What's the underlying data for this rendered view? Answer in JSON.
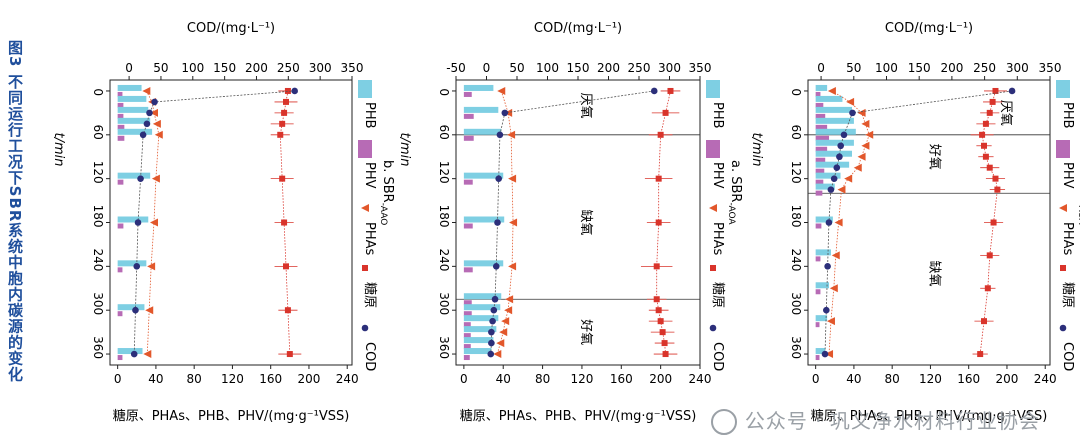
{
  "figure": {
    "caption": "图3  不同运行工况下SBR系统中胞内碳源的变化",
    "watermark": "公众号 · 巩义净水材料行业协会",
    "x_axis_label": "t/min",
    "top_axis_label": "COD/(mg·L⁻¹)",
    "bottom_axis_label": "糖原、PHAs、PHB、PHV/(mg·g⁻¹VSS)",
    "legend": [
      {
        "key": "phb",
        "label": "PHB",
        "color": "#7ecfe3"
      },
      {
        "key": "phv",
        "label": "PHV",
        "color": "#b76bb5"
      },
      {
        "key": "phas",
        "label": "PHAs",
        "color": "#e2572b"
      },
      {
        "key": "glycogen",
        "label": "糖原",
        "color": "#d9342b"
      },
      {
        "key": "cod",
        "label": "COD",
        "color": "#2c2f7a"
      }
    ]
  },
  "chart_data": [
    {
      "type": "bar",
      "subtitle": "a. SBR",
      "subtitle_sub": "AOA",
      "x_axis": {
        "label": "t/min",
        "range": [
          -15,
          375
        ],
        "ticks": [
          0,
          60,
          120,
          180,
          240,
          300,
          360
        ]
      },
      "top_axis": {
        "label": "COD/(mg·L⁻¹)",
        "range": [
          -20,
          350
        ],
        "ticks": [
          0,
          50,
          100,
          150,
          200,
          250,
          300,
          350
        ]
      },
      "bottom_axis": {
        "label": "糖原、PHAs、PHB、PHV/(mg·g⁻¹VSS)",
        "range": [
          -8,
          245
        ],
        "ticks": [
          0,
          40,
          80,
          120,
          160,
          200,
          240
        ]
      },
      "phase_lines": [
        60,
        140
      ],
      "phase_labels": [
        {
          "text": "厌氧",
          "t": 30,
          "v": 195
        },
        {
          "text": "好氧",
          "t": 90,
          "v": 120
        },
        {
          "text": "缺氧",
          "t": 250,
          "v": 120
        }
      ],
      "bar_times": [
        0,
        15,
        30,
        45,
        60,
        75,
        90,
        105,
        120,
        135,
        180,
        225,
        270,
        315,
        360
      ],
      "phb": [
        12,
        28,
        38,
        40,
        42,
        40,
        38,
        35,
        26,
        20,
        18,
        16,
        14,
        12,
        10
      ],
      "phv": [
        5,
        8,
        10,
        12,
        14,
        12,
        10,
        9,
        8,
        7,
        6,
        5,
        5,
        4,
        4
      ],
      "phas_t": [
        0,
        15,
        30,
        45,
        60,
        75,
        90,
        105,
        120,
        135,
        180,
        225,
        270,
        315,
        360
      ],
      "phas": [
        17,
        36,
        48,
        52,
        56,
        52,
        48,
        44,
        34,
        27,
        24,
        21,
        19,
        16,
        14
      ],
      "glycogen_t": [
        0,
        15,
        30,
        45,
        60,
        75,
        90,
        105,
        120,
        135,
        180,
        225,
        270,
        315,
        360
      ],
      "glycogen": [
        188,
        185,
        182,
        178,
        174,
        176,
        178,
        182,
        188,
        190,
        186,
        182,
        180,
        176,
        172
      ],
      "glycogen_err": [
        12,
        10,
        10,
        10,
        12,
        8,
        8,
        10,
        10,
        8,
        10,
        10,
        8,
        10,
        8
      ],
      "cod_t": [
        0,
        30,
        60,
        75,
        90,
        105,
        120,
        135,
        180,
        240,
        300,
        360
      ],
      "cod": [
        292,
        48,
        35,
        30,
        28,
        24,
        20,
        15,
        12,
        10,
        8,
        6
      ]
    },
    {
      "type": "bar",
      "subtitle": "a. SBR",
      "subtitle_sub": "AOA",
      "x_axis": {
        "label": "t/min",
        "range": [
          -15,
          375
        ],
        "ticks": [
          0,
          60,
          120,
          180,
          240,
          300,
          360
        ]
      },
      "top_axis": {
        "label": "COD/(mg·L⁻¹)",
        "range": [
          -50,
          350
        ],
        "ticks": [
          -50,
          0,
          50,
          100,
          150,
          200,
          250,
          300,
          350
        ]
      },
      "bottom_axis": {
        "label": "糖原、PHAs、PHB、PHV/(mg·g⁻¹VSS)",
        "range": [
          -8,
          240
        ],
        "ticks": [
          0,
          40,
          80,
          120,
          160,
          200,
          240
        ]
      },
      "phase_lines": [
        60,
        285
      ],
      "phase_labels": [
        {
          "text": "厌氧",
          "t": 20,
          "v": 120
        },
        {
          "text": "缺氧",
          "t": 180,
          "v": 120
        },
        {
          "text": "好氧",
          "t": 330,
          "v": 120
        }
      ],
      "bar_times": [
        0,
        30,
        60,
        120,
        180,
        240,
        285,
        300,
        315,
        330,
        345,
        360
      ],
      "phb": [
        30,
        35,
        38,
        40,
        41,
        40,
        38,
        37,
        35,
        33,
        30,
        28
      ],
      "phv": [
        8,
        10,
        10,
        9,
        9,
        9,
        8,
        8,
        7,
        7,
        7,
        6
      ],
      "phas_t": [
        0,
        30,
        60,
        120,
        180,
        240,
        285,
        300,
        315,
        330,
        345,
        360
      ],
      "phas": [
        38,
        45,
        48,
        49,
        50,
        49,
        46,
        45,
        42,
        40,
        37,
        34
      ],
      "glycogen_t": [
        0,
        30,
        60,
        120,
        180,
        240,
        285,
        300,
        315,
        330,
        345,
        360
      ],
      "glycogen": [
        210,
        205,
        200,
        198,
        198,
        196,
        196,
        198,
        200,
        202,
        204,
        205
      ],
      "glycogen_err": [
        10,
        14,
        12,
        14,
        12,
        16,
        10,
        10,
        12,
        12,
        10,
        12
      ],
      "cod_t": [
        0,
        30,
        60,
        120,
        180,
        240,
        285,
        300,
        315,
        330,
        345,
        360
      ],
      "cod": [
        275,
        30,
        22,
        20,
        18,
        16,
        14,
        12,
        10,
        8,
        8,
        7
      ]
    },
    {
      "type": "bar",
      "subtitle": "b. SBR",
      "subtitle_sub": "AAO",
      "x_axis": {
        "label": "t/min",
        "range": [
          -15,
          375
        ],
        "ticks": [
          0,
          60,
          120,
          180,
          240,
          300,
          360
        ]
      },
      "top_axis": {
        "label": "COD/(mg·L⁻¹)",
        "range": [
          -30,
          350
        ],
        "ticks": [
          0,
          50,
          100,
          150,
          200,
          250,
          300,
          350
        ]
      },
      "bottom_axis": {
        "label": "糖原、PHAs、PHB、PHV/(mg·g⁻¹VSS)",
        "range": [
          -8,
          245
        ],
        "ticks": [
          0,
          40,
          80,
          120,
          160,
          200,
          240
        ]
      },
      "phase_lines": [],
      "phase_labels": [],
      "bar_times": [
        0,
        15,
        30,
        45,
        60,
        120,
        180,
        240,
        300,
        360
      ],
      "phb": [
        25,
        30,
        32,
        34,
        36,
        34,
        32,
        30,
        28,
        26
      ],
      "phv": [
        5,
        6,
        6,
        7,
        7,
        6,
        6,
        5,
        5,
        5
      ],
      "phas_t": [
        0,
        15,
        30,
        45,
        60,
        120,
        180,
        240,
        300,
        360
      ],
      "phas": [
        30,
        36,
        38,
        41,
        43,
        40,
        38,
        35,
        33,
        31
      ],
      "glycogen_t": [
        0,
        15,
        30,
        45,
        60,
        120,
        180,
        240,
        300,
        360
      ],
      "glycogen": [
        178,
        176,
        174,
        172,
        170,
        172,
        174,
        176,
        178,
        180
      ],
      "glycogen_err": [
        10,
        12,
        10,
        12,
        10,
        12,
        10,
        12,
        10,
        12
      ],
      "cod_t": [
        0,
        15,
        30,
        45,
        60,
        120,
        180,
        240,
        300,
        360
      ],
      "cod": [
        260,
        40,
        32,
        28,
        22,
        18,
        14,
        12,
        10,
        8
      ]
    }
  ]
}
